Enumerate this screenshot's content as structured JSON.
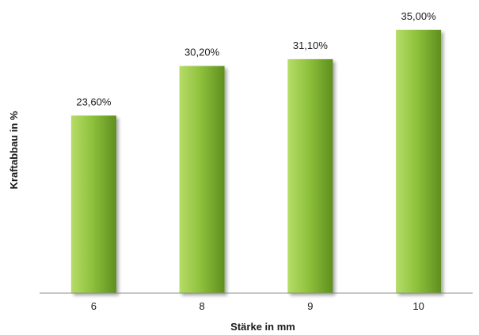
{
  "chart_data": {
    "type": "bar",
    "title": "",
    "xlabel": "Stärke in mm",
    "ylabel": "Kraftabbau in %",
    "categories": [
      "6",
      "8",
      "9",
      "10"
    ],
    "values": [
      23.6,
      30.2,
      31.1,
      35.0
    ],
    "data_labels": [
      "23,60%",
      "30,20%",
      "31,10%",
      "35,00%"
    ],
    "ylim": [
      0,
      37.5
    ],
    "grid": false,
    "legend": "none",
    "colors": {
      "bar_light": "#b6dc68",
      "bar_mid": "#8fc23d",
      "bar_dark": "#5f8f1f",
      "axis": "#8c8c8c"
    }
  }
}
